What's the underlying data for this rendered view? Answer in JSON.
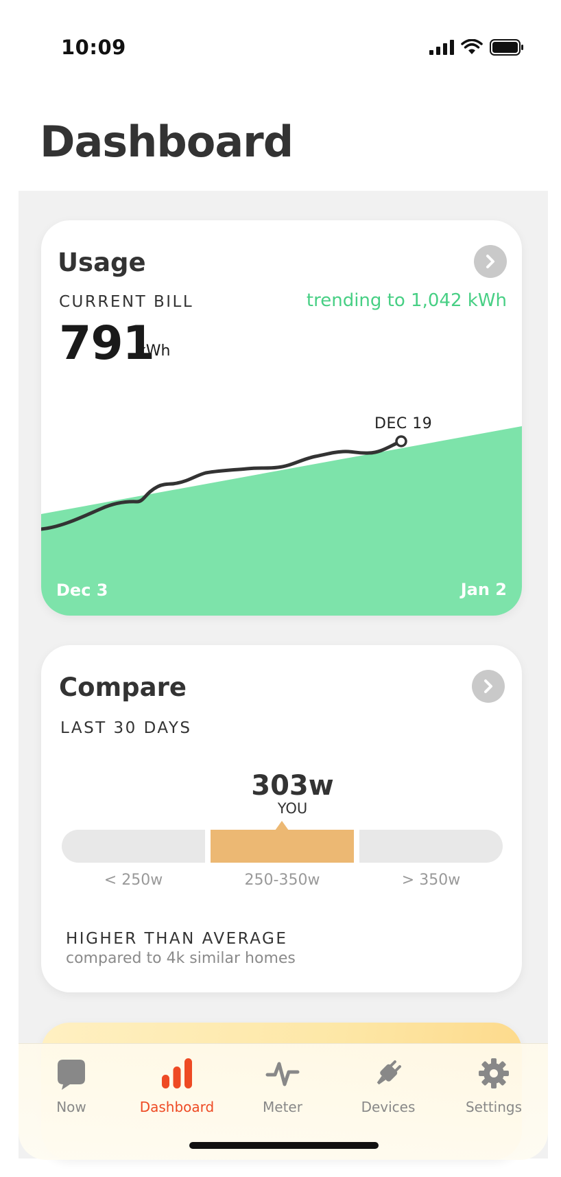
{
  "status_bar": {
    "time": "10:09"
  },
  "page_title": "Dashboard",
  "usage_card": {
    "title": "Usage",
    "label": "CURRENT BILL",
    "trend_text": "trending to 1,042 kWh",
    "value": "791",
    "unit": "kWh",
    "marker_label": "DEC 19",
    "start_date": "Dec 3",
    "end_date": "Jan 2"
  },
  "compare_card": {
    "title": "Compare",
    "label": "LAST 30 DAYS",
    "you_value": "303w",
    "you_label": "YOU",
    "ranges": [
      "< 250w",
      "250-350w",
      "> 350w"
    ],
    "summary": "HIGHER THAN AVERAGE",
    "subtext": "compared to 4k similar homes"
  },
  "tab_bar": {
    "items": [
      {
        "label": "Now",
        "icon": "chat-bubble-icon",
        "active": false
      },
      {
        "label": "Dashboard",
        "icon": "bar-chart-icon",
        "active": true
      },
      {
        "label": "Meter",
        "icon": "pulse-icon",
        "active": false
      },
      {
        "label": "Devices",
        "icon": "plug-icon",
        "active": false
      },
      {
        "label": "Settings",
        "icon": "gear-icon",
        "active": false
      }
    ]
  },
  "colors": {
    "accent_green": "#7de3aa",
    "trend_green": "#47cf84",
    "active_tab": "#ee4a24",
    "compare_bar_you": "#ecb873"
  }
}
